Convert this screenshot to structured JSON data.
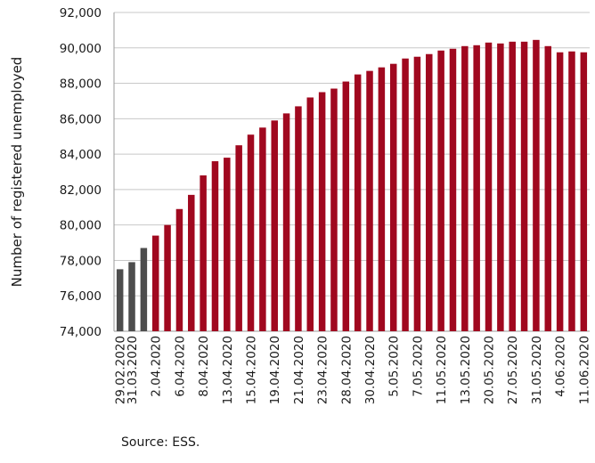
{
  "chart_data": {
    "type": "bar",
    "ylabel": "Number of registered unemployed",
    "xlabel": "",
    "ylim": [
      74000,
      92000
    ],
    "yticks": [
      74000,
      76000,
      78000,
      80000,
      82000,
      84000,
      86000,
      88000,
      90000,
      92000
    ],
    "ytick_labels": [
      "74,000",
      "76,000",
      "78,000",
      "80,000",
      "82,000",
      "84,000",
      "86,000",
      "88,000",
      "90,000",
      "92,000"
    ],
    "grid": true,
    "colors": {
      "early": "#4d4d4d",
      "main": "#a0081f",
      "grid": "#c8c8c8"
    },
    "values": [
      77500,
      77900,
      78700,
      79400,
      80000,
      80900,
      81700,
      82800,
      83600,
      83800,
      84500,
      85100,
      85500,
      85900,
      86300,
      86700,
      87200,
      87500,
      87700,
      88100,
      88500,
      88700,
      88900,
      89100,
      89400,
      89500,
      89650,
      89850,
      89950,
      90100,
      90150,
      90300,
      90250,
      90350,
      90350,
      90450,
      90100,
      89750,
      89800,
      89750
    ],
    "bar_colors": [
      "early",
      "early",
      "early",
      "main",
      "main",
      "main",
      "main",
      "main",
      "main",
      "main",
      "main",
      "main",
      "main",
      "main",
      "main",
      "main",
      "main",
      "main",
      "main",
      "main",
      "main",
      "main",
      "main",
      "main",
      "main",
      "main",
      "main",
      "main",
      "main",
      "main",
      "main",
      "main",
      "main",
      "main",
      "main",
      "main",
      "main",
      "main",
      "main",
      "main"
    ],
    "x_labels": [
      {
        "index": 0,
        "text": "29.02.2020"
      },
      {
        "index": 1,
        "text": "31.03.2020"
      },
      {
        "index": 3,
        "text": "2.04.2020"
      },
      {
        "index": 5,
        "text": "6.04.2020"
      },
      {
        "index": 7,
        "text": "8.04.2020"
      },
      {
        "index": 9,
        "text": "13.04.2020"
      },
      {
        "index": 11,
        "text": "15.04.2020"
      },
      {
        "index": 13,
        "text": "19.04.2020"
      },
      {
        "index": 15,
        "text": "21.04.2020"
      },
      {
        "index": 17,
        "text": "23.04.2020"
      },
      {
        "index": 19,
        "text": "28.04.2020"
      },
      {
        "index": 21,
        "text": "30.04.2020"
      },
      {
        "index": 23,
        "text": "5.05.2020"
      },
      {
        "index": 25,
        "text": "7.05.2020"
      },
      {
        "index": 27,
        "text": "11.05.2020"
      },
      {
        "index": 29,
        "text": "13.05.2020"
      },
      {
        "index": 31,
        "text": "20.05.2020"
      },
      {
        "index": 33,
        "text": "27.05.2020"
      },
      {
        "index": 35,
        "text": "31.05.2020"
      },
      {
        "index": 37,
        "text": "4.06.2020"
      },
      {
        "index": 39,
        "text": "11.06.2020"
      }
    ]
  },
  "source_text": "Source: ESS."
}
